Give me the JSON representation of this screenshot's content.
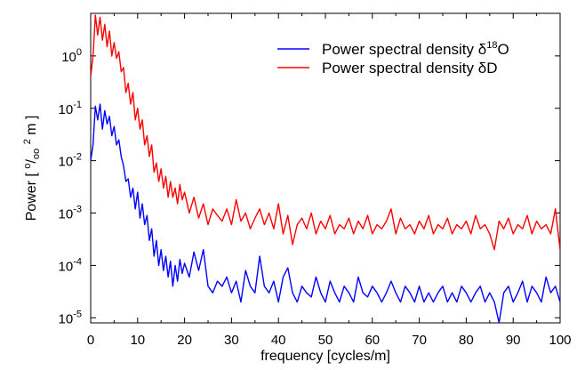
{
  "chart_data": {
    "type": "line",
    "xlabel": "frequency [cycles/m]",
    "ylabel": {
      "prefix": "Power [ ",
      "sup1": "o",
      "mid": "/",
      "sub": "oo",
      "space": " ",
      "sup2": "2",
      "suffix": " m ]"
    },
    "xlim": [
      0,
      100
    ],
    "ylim": [
      8e-06,
      6.5
    ],
    "yscale": "log",
    "xticks": [
      "0",
      "10",
      "20",
      "30",
      "40",
      "50",
      "60",
      "70",
      "80",
      "90",
      "100"
    ],
    "yticks": [
      {
        "base": "10",
        "exp": "-5",
        "value": 1e-05
      },
      {
        "base": "10",
        "exp": "-4",
        "value": 0.0001
      },
      {
        "base": "10",
        "exp": "-3",
        "value": 0.001
      },
      {
        "base": "10",
        "exp": "-2",
        "value": 0.01
      },
      {
        "base": "10",
        "exp": "-1",
        "value": 0.1
      },
      {
        "base": "10",
        "exp": "0",
        "value": 1
      }
    ],
    "legend_position": "top-right",
    "series": [
      {
        "name": "Power spectral density δ18O",
        "legend_main": "Power spectral density δ",
        "legend_sup": "18",
        "legend_tail": "O",
        "color": "#0000ff",
        "x": [
          0,
          0.5,
          1,
          1.5,
          2,
          2.5,
          3,
          3.5,
          4,
          4.5,
          5,
          5.5,
          6,
          6.5,
          7,
          7.5,
          8,
          8.5,
          9,
          9.5,
          10,
          10.5,
          11,
          11.5,
          12,
          12.5,
          13,
          13.5,
          14,
          14.5,
          15,
          15.5,
          16,
          16.5,
          17,
          17.5,
          18,
          18.5,
          19,
          19.5,
          20,
          21,
          22,
          23,
          24,
          25,
          26,
          27,
          28,
          29,
          30,
          31,
          32,
          33,
          34,
          35,
          36,
          37,
          38,
          39,
          40,
          41,
          42,
          43,
          44,
          45,
          46,
          47,
          48,
          49,
          50,
          51,
          52,
          53,
          54,
          55,
          56,
          57,
          58,
          59,
          60,
          61,
          62,
          63,
          64,
          65,
          66,
          67,
          68,
          69,
          70,
          71,
          72,
          73,
          74,
          75,
          76,
          77,
          78,
          79,
          80,
          81,
          82,
          83,
          84,
          85,
          86,
          87,
          88,
          89,
          90,
          91,
          92,
          93,
          94,
          95,
          96,
          97,
          98,
          99,
          100
        ],
        "y": [
          0.01,
          0.02,
          0.11,
          0.06,
          0.12,
          0.04,
          0.09,
          0.05,
          0.07,
          0.03,
          0.045,
          0.02,
          0.025,
          0.012,
          0.008,
          0.004,
          0.0045,
          0.002,
          0.003,
          0.0012,
          0.0025,
          0.0008,
          0.0015,
          0.0006,
          0.0009,
          0.0003,
          0.0005,
          0.00015,
          0.0003,
          0.0001,
          0.0002,
          8e-05,
          0.00015,
          6e-05,
          0.00012,
          4e-05,
          0.0001,
          5e-05,
          0.00013,
          7e-05,
          0.00011,
          6e-05,
          0.00018,
          8e-05,
          0.0002,
          4e-05,
          3e-05,
          5e-05,
          4e-05,
          6e-05,
          3e-05,
          5e-05,
          2e-05,
          8e-05,
          4e-05,
          3e-05,
          0.00015,
          4e-05,
          3e-05,
          5e-05,
          2e-05,
          6e-05,
          9e-05,
          3e-05,
          2e-05,
          4e-05,
          3e-05,
          2.5e-05,
          6e-05,
          3e-05,
          2e-05,
          5e-05,
          3e-05,
          2e-05,
          4e-05,
          3e-05,
          2e-05,
          6e-05,
          3e-05,
          2.5e-05,
          4e-05,
          3e-05,
          2e-05,
          3e-05,
          5e-05,
          3e-05,
          2e-05,
          4e-05,
          3e-05,
          2e-05,
          4e-05,
          2e-05,
          3e-05,
          2e-05,
          3e-05,
          4e-05,
          2e-05,
          3e-05,
          2e-05,
          4e-05,
          3e-05,
          2e-05,
          3e-05,
          4e-05,
          2e-05,
          3e-05,
          2e-05,
          8e-06,
          3e-05,
          4e-05,
          2e-05,
          3e-05,
          5e-05,
          2e-05,
          4e-05,
          3e-05,
          2e-05,
          6e-05,
          3e-05,
          4e-05,
          2e-05
        ]
      },
      {
        "name": "Power spectral density δD",
        "legend_main": "Power spectral density δD",
        "legend_sup": "",
        "legend_tail": "",
        "color": "#ff0000",
        "x": [
          0,
          0.5,
          1,
          1.5,
          2,
          2.5,
          3,
          3.5,
          4,
          4.5,
          5,
          5.5,
          6,
          6.5,
          7,
          7.5,
          8,
          8.5,
          9,
          9.5,
          10,
          10.5,
          11,
          11.5,
          12,
          12.5,
          13,
          13.5,
          14,
          14.5,
          15,
          15.5,
          16,
          16.5,
          17,
          17.5,
          18,
          18.5,
          19,
          19.5,
          20,
          21,
          22,
          23,
          24,
          25,
          26,
          27,
          28,
          29,
          30,
          31,
          32,
          33,
          34,
          35,
          36,
          37,
          38,
          39,
          40,
          41,
          42,
          43,
          44,
          45,
          46,
          47,
          48,
          49,
          50,
          51,
          52,
          53,
          54,
          55,
          56,
          57,
          58,
          59,
          60,
          61,
          62,
          63,
          64,
          65,
          66,
          67,
          68,
          69,
          70,
          71,
          72,
          73,
          74,
          75,
          76,
          77,
          78,
          79,
          80,
          81,
          82,
          83,
          84,
          85,
          86,
          87,
          88,
          89,
          90,
          91,
          92,
          93,
          94,
          95,
          96,
          97,
          98,
          99,
          100
        ],
        "y": [
          0.4,
          1.0,
          6.0,
          2.5,
          5.5,
          2.0,
          4.0,
          1.5,
          3.0,
          1.0,
          1.8,
          0.9,
          1.2,
          0.5,
          0.6,
          0.2,
          0.3,
          0.12,
          0.2,
          0.06,
          0.1,
          0.04,
          0.06,
          0.02,
          0.03,
          0.012,
          0.02,
          0.006,
          0.009,
          0.004,
          0.007,
          0.003,
          0.005,
          0.002,
          0.004,
          0.002,
          0.003,
          0.0015,
          0.0035,
          0.0018,
          0.0025,
          0.001,
          0.002,
          0.0008,
          0.0015,
          0.0006,
          0.0012,
          0.0009,
          0.0007,
          0.0012,
          0.0006,
          0.0018,
          0.0007,
          0.001,
          0.0005,
          0.0008,
          0.0012,
          0.0006,
          0.001,
          0.0005,
          0.0015,
          0.0004,
          0.0009,
          0.00025,
          0.0006,
          0.0008,
          0.0005,
          0.001,
          0.0004,
          0.0007,
          0.0005,
          0.0009,
          0.0004,
          0.0006,
          0.0005,
          0.0008,
          0.0004,
          0.0007,
          0.0005,
          0.0009,
          0.0004,
          0.0006,
          0.0005,
          0.0007,
          0.0012,
          0.0004,
          0.0008,
          0.0005,
          0.0006,
          0.0004,
          0.0007,
          0.0005,
          0.0009,
          0.0004,
          0.0006,
          0.0005,
          0.0008,
          0.0004,
          0.0006,
          0.0005,
          0.0007,
          0.0004,
          0.0009,
          0.0005,
          0.0006,
          0.0004,
          0.0002,
          0.0007,
          0.0005,
          0.0008,
          0.0004,
          0.0006,
          0.0005,
          0.0009,
          0.0004,
          0.0007,
          0.0005,
          0.0006,
          0.0004,
          0.0012,
          0.0002
        ]
      }
    ]
  }
}
